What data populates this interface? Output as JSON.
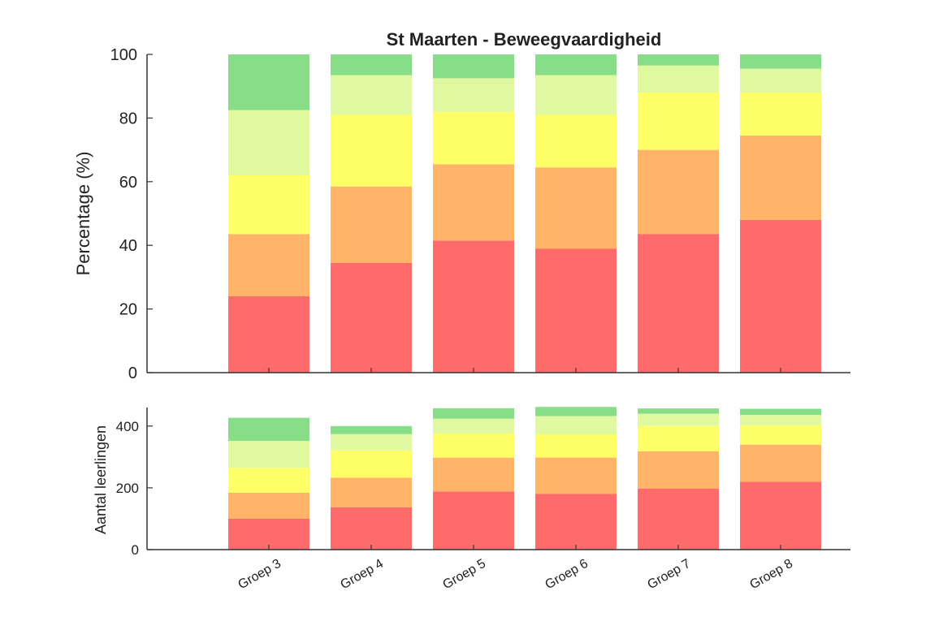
{
  "chart_data": [
    {
      "type": "bar",
      "stacked": true,
      "title": "St Maarten - Beweegvaardigheid",
      "xlabel": "",
      "ylabel": "Percentage (%)",
      "ylim": [
        0,
        100
      ],
      "yticks": [
        0,
        20,
        40,
        60,
        80,
        100
      ],
      "grid": false,
      "categories": [
        "Groep 3",
        "Groep 4",
        "Groep 5",
        "Groep 6",
        "Groep 7",
        "Groep 8"
      ],
      "series": [
        {
          "color": "#ff6b6b",
          "values": [
            24,
            34.5,
            41.5,
            39,
            43.5,
            48
          ]
        },
        {
          "color": "#ffb468",
          "values": [
            19.5,
            24,
            24,
            25.5,
            26.5,
            26.5
          ]
        },
        {
          "color": "#ffff66",
          "values": [
            18.5,
            22.5,
            16.5,
            16.5,
            18,
            13.5
          ]
        },
        {
          "color": "#e0f9a0",
          "values": [
            20.5,
            12.5,
            10.5,
            12.5,
            8.5,
            7.5
          ]
        },
        {
          "color": "#88de88",
          "values": [
            17.5,
            6.5,
            7.5,
            6.5,
            3.5,
            4.5
          ]
        }
      ]
    },
    {
      "type": "bar",
      "stacked": true,
      "xlabel": "",
      "ylabel": "Aantal leerlingen",
      "ylim": [
        0,
        460
      ],
      "yticks": [
        0,
        200,
        400
      ],
      "grid": false,
      "categories": [
        "Groep 3",
        "Groep 4",
        "Groep 5",
        "Groep 6",
        "Groep 7",
        "Groep 8"
      ],
      "series": [
        {
          "color": "#ff6b6b",
          "values": [
            100,
            137,
            188,
            180,
            198,
            220
          ]
        },
        {
          "color": "#ffb468",
          "values": [
            84,
            96,
            110,
            118,
            120,
            120
          ]
        },
        {
          "color": "#ffff66",
          "values": [
            80,
            88,
            78,
            76,
            82,
            62
          ]
        },
        {
          "color": "#e0f9a0",
          "values": [
            88,
            53,
            48,
            58,
            40,
            34
          ]
        },
        {
          "color": "#88de88",
          "values": [
            75,
            26,
            34,
            30,
            17,
            20
          ]
        }
      ]
    }
  ]
}
